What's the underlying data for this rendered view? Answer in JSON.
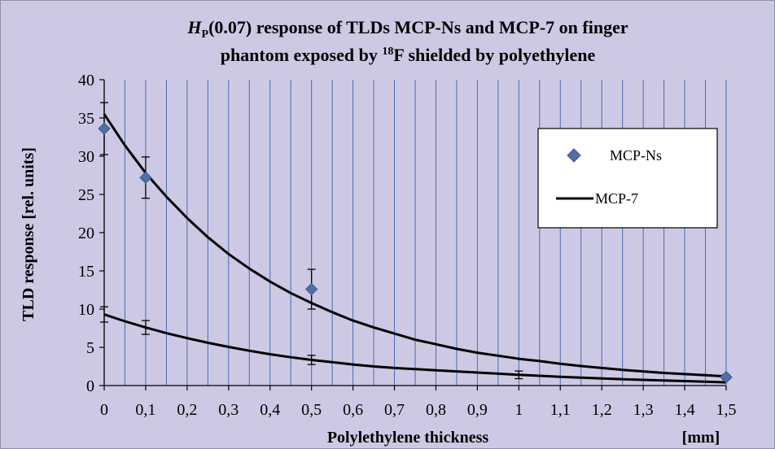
{
  "chart_data": {
    "type": "scatter",
    "title": {
      "line1_prefix_italic": "H",
      "line1_sub": "P",
      "line1_rest": "(0.07) response of TLDs MCP-Ns  and  MCP-7  on finger",
      "line2_a": "phantom  exposed by ",
      "line2_sup": "18",
      "line2_b": "F shielded by polyethylene"
    },
    "xlabel": "Polylethylene thickness",
    "xunit": "[mm]",
    "ylabel": "TLD response  [rel. units]",
    "xlim": [
      0,
      1.5
    ],
    "ylim": [
      0,
      40
    ],
    "x_ticks": [
      "0",
      "0,1",
      "0,2",
      "0,3",
      "0,4",
      "0,5",
      "0,6",
      "0,7",
      "0,8",
      "0,9",
      "1",
      "1,1",
      "1,2",
      "1,3",
      "1,4",
      "1,5"
    ],
    "y_ticks": [
      "0",
      "5",
      "10",
      "15",
      "20",
      "25",
      "30",
      "35",
      "40"
    ],
    "grid": {
      "vertical_minor_step": 0.05,
      "horizontal": false
    },
    "legend_position": "right",
    "series": [
      {
        "name": "MCP-Ns",
        "kind": "markers",
        "marker": "diamond",
        "color": "#4f6fa8",
        "points": [
          {
            "x": 0,
            "y": 33.6,
            "err": 3.4
          },
          {
            "x": 0.1,
            "y": 27.2,
            "err": 2.7
          },
          {
            "x": 0.5,
            "y": 12.6,
            "err": 2.6
          },
          {
            "x": 1.5,
            "y": 1.1,
            "err": 0.3
          }
        ]
      },
      {
        "name": "MCP-7",
        "kind": "line",
        "color": "#000000",
        "x": [
          0,
          0.05,
          0.1,
          0.15,
          0.2,
          0.25,
          0.3,
          0.35,
          0.4,
          0.45,
          0.5,
          0.55,
          0.6,
          0.65,
          0.7,
          0.75,
          0.8,
          0.85,
          0.9,
          0.95,
          1.0,
          1.05,
          1.1,
          1.15,
          1.2,
          1.25,
          1.3,
          1.35,
          1.4,
          1.45,
          1.5
        ],
        "y": [
          35.5,
          31.4,
          27.8,
          24.7,
          21.9,
          19.4,
          17.2,
          15.3,
          13.6,
          12.1,
          10.8,
          9.6,
          8.5,
          7.6,
          6.8,
          6.0,
          5.4,
          4.8,
          4.3,
          3.9,
          3.5,
          3.2,
          2.85,
          2.55,
          2.3,
          2.05,
          1.85,
          1.65,
          1.5,
          1.35,
          1.2
        ]
      },
      {
        "name": "",
        "kind": "line",
        "color": "#000000",
        "x": [
          0,
          0.05,
          0.1,
          0.15,
          0.2,
          0.25,
          0.3,
          0.35,
          0.4,
          0.45,
          0.5,
          0.55,
          0.6,
          0.65,
          0.7,
          0.75,
          0.8,
          0.85,
          0.9,
          0.95,
          1.0,
          1.05,
          1.1,
          1.15,
          1.2,
          1.25,
          1.3,
          1.35,
          1.4,
          1.45,
          1.5
        ],
        "y": [
          9.3,
          8.4,
          7.6,
          6.85,
          6.2,
          5.6,
          5.05,
          4.55,
          4.1,
          3.7,
          3.35,
          3.05,
          2.75,
          2.5,
          2.3,
          2.15,
          2.0,
          1.85,
          1.7,
          1.55,
          1.4,
          1.28,
          1.15,
          1.03,
          0.93,
          0.83,
          0.74,
          0.66,
          0.58,
          0.5,
          0.42
        ],
        "errors": [
          {
            "x": 0,
            "y": 9.3,
            "err": 1.0
          },
          {
            "x": 0.1,
            "y": 7.6,
            "err": 0.9
          },
          {
            "x": 0.5,
            "y": 3.35,
            "err": 0.6
          },
          {
            "x": 1.0,
            "y": 1.4,
            "err": 0.5
          }
        ]
      }
    ]
  }
}
